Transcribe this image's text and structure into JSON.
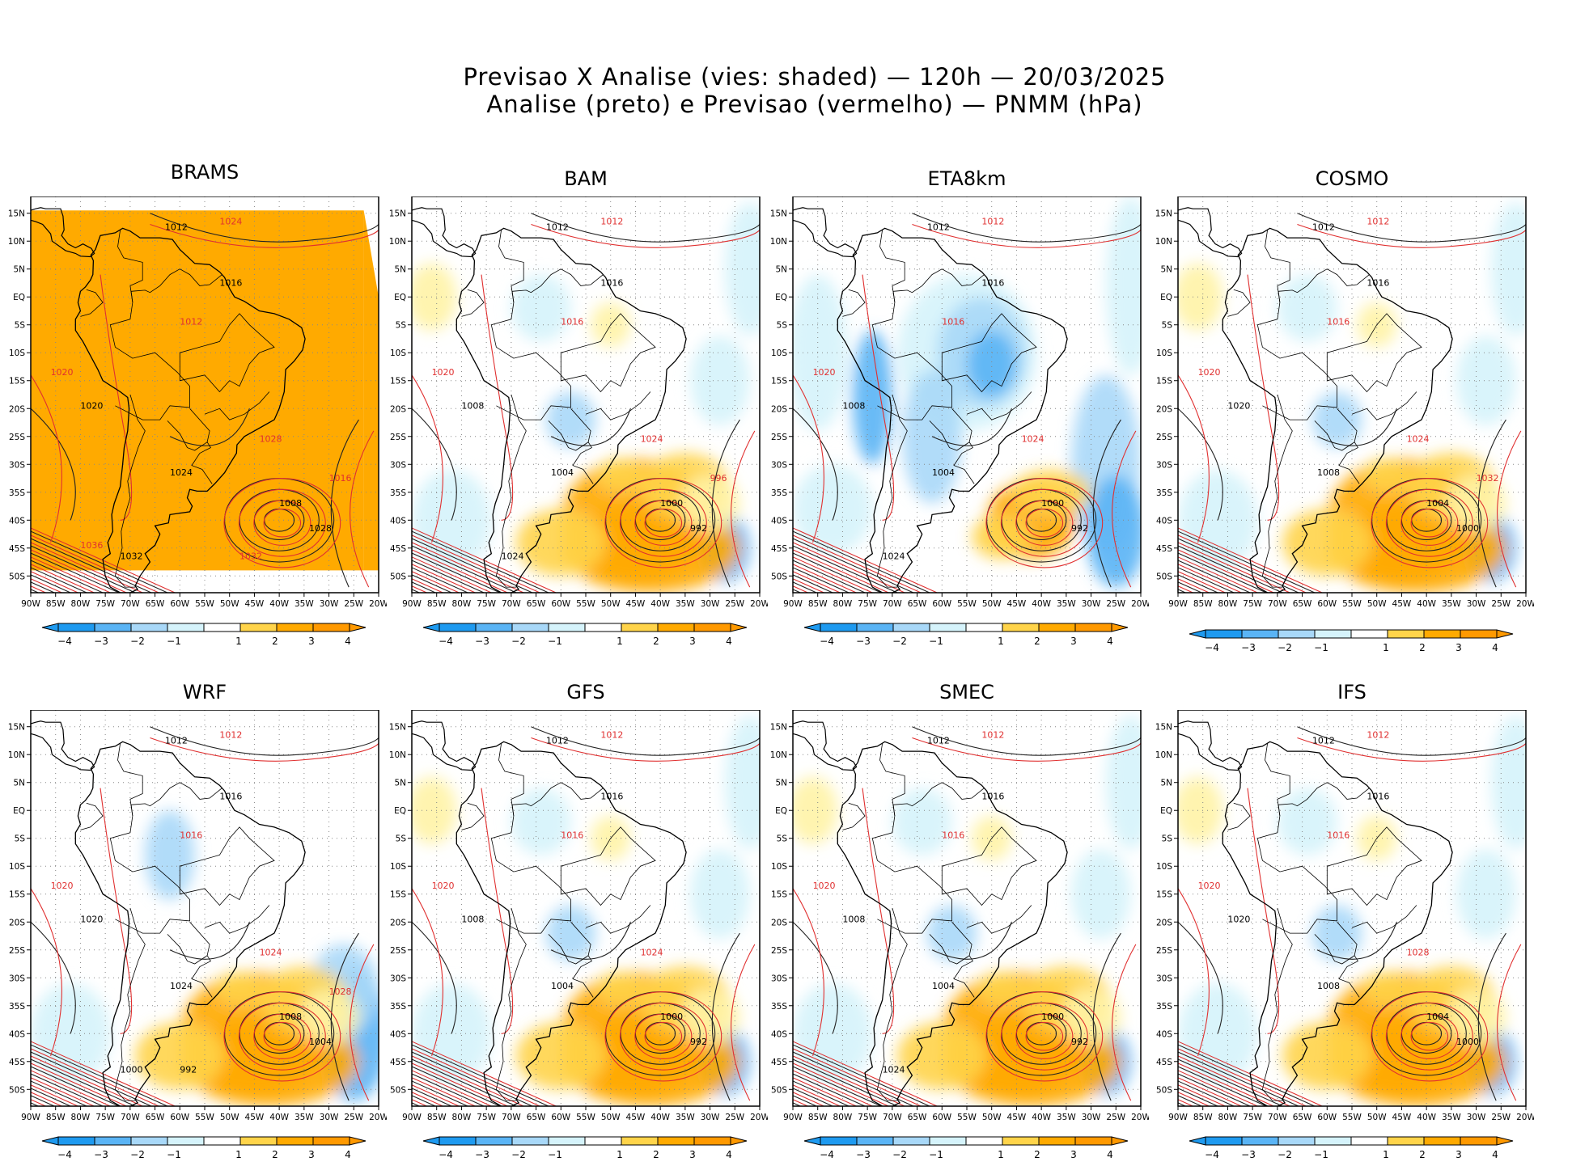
{
  "header": {
    "line1": "Previsao X Analise (vies: shaded) — 120h — 20/03/2025",
    "line2": "Analise (preto) e Previsao (vermelho) — PNMM (hPa)"
  },
  "axes": {
    "lat_labels": [
      "15N",
      "10N",
      "5N",
      "EQ",
      "5S",
      "10S",
      "15S",
      "20S",
      "25S",
      "30S",
      "35S",
      "40S",
      "45S",
      "50S"
    ],
    "lon_labels": [
      "90W",
      "85W",
      "80W",
      "75W",
      "70W",
      "65W",
      "60W",
      "55W",
      "50W",
      "45W",
      "40W",
      "35W",
      "30W",
      "25W",
      "20W"
    ]
  },
  "colorbar": {
    "labels": [
      "−4",
      "−3",
      "−2",
      "−1",
      "1",
      "2",
      "3",
      "4"
    ],
    "colors": [
      "#1e9af0",
      "#5ab4f5",
      "#a8d8f8",
      "#d5f3fb",
      "#ffffff",
      "#fff3a6",
      "#ffd44a",
      "#ffaa00",
      "#ff9900"
    ]
  },
  "panels": [
    {
      "name": "BRAMS",
      "style": "brams",
      "isobars": [
        "1012",
        "1016",
        "1020",
        "1024",
        "1008",
        "1028",
        "1032"
      ],
      "isobars_red": [
        "1024",
        "1012",
        "1020",
        "1028",
        "1016",
        "1032",
        "1036"
      ]
    },
    {
      "name": "BAM",
      "style": "mixed",
      "isobars": [
        "1012",
        "1016",
        "1008",
        "1004",
        "1000",
        "992",
        "1024"
      ],
      "isobars_red": [
        "1012",
        "1016",
        "1020",
        "1024",
        "996"
      ]
    },
    {
      "name": "ETA8km",
      "style": "cool",
      "isobars": [
        "1012",
        "1016",
        "1008",
        "1004",
        "1000",
        "992",
        "1024"
      ],
      "isobars_red": [
        "1012",
        "1016",
        "1020",
        "1024"
      ]
    },
    {
      "name": "COSMO",
      "style": "mixed",
      "isobars": [
        "1012",
        "1016",
        "1020",
        "1008",
        "1004",
        "1000"
      ],
      "isobars_red": [
        "1012",
        "1016",
        "1020",
        "1024",
        "1032"
      ]
    },
    {
      "name": "WRF",
      "style": "cool-east",
      "isobars": [
        "1012",
        "1016",
        "1020",
        "1024",
        "1008",
        "1004",
        "1000",
        "992"
      ],
      "isobars_red": [
        "1012",
        "1016",
        "1020",
        "1024",
        "1028"
      ]
    },
    {
      "name": "GFS",
      "style": "mixed",
      "isobars": [
        "1012",
        "1016",
        "1008",
        "1004",
        "1000",
        "992"
      ],
      "isobars_red": [
        "1012",
        "1016",
        "1020",
        "1024"
      ]
    },
    {
      "name": "SMEC",
      "style": "mixed",
      "isobars": [
        "1012",
        "1016",
        "1008",
        "1004",
        "1000",
        "992",
        "1024"
      ],
      "isobars_red": [
        "1012",
        "1016",
        "1020"
      ]
    },
    {
      "name": "IFS",
      "style": "mixed",
      "isobars": [
        "1012",
        "1016",
        "1020",
        "1008",
        "1004",
        "1000"
      ],
      "isobars_red": [
        "1012",
        "1016",
        "1020",
        "1028"
      ]
    }
  ]
}
